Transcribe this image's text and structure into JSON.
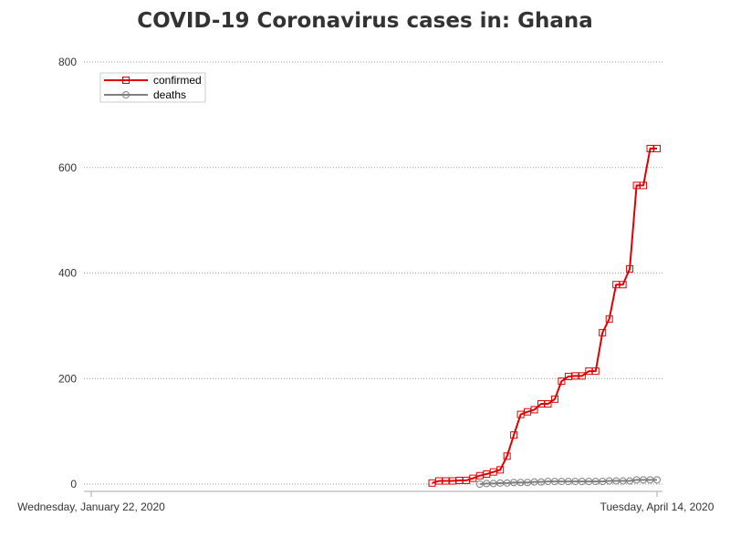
{
  "chart_data": {
    "type": "line",
    "title": "COVID-19 Coronavirus cases in: Ghana",
    "xlabel": "",
    "ylabel": "",
    "x_start_label": "Wednesday, January 22, 2020",
    "x_end_label": "Tuesday, April 14, 2020",
    "ylim": [
      0,
      800
    ],
    "yticks": [
      0,
      200,
      400,
      600,
      800
    ],
    "grid": true,
    "legend": "top-left",
    "series": [
      {
        "name": "confirmed",
        "color": "#e00000",
        "marker": "square",
        "x": [
          "2020-03-12",
          "2020-03-13",
          "2020-03-14",
          "2020-03-15",
          "2020-03-16",
          "2020-03-17",
          "2020-03-18",
          "2020-03-19",
          "2020-03-20",
          "2020-03-21",
          "2020-03-22",
          "2020-03-23",
          "2020-03-24",
          "2020-03-25",
          "2020-03-26",
          "2020-03-27",
          "2020-03-28",
          "2020-03-29",
          "2020-03-30",
          "2020-03-31",
          "2020-04-01",
          "2020-04-02",
          "2020-04-03",
          "2020-04-04",
          "2020-04-05",
          "2020-04-06",
          "2020-04-07",
          "2020-04-08",
          "2020-04-09",
          "2020-04-10",
          "2020-04-11",
          "2020-04-12",
          "2020-04-13",
          "2020-04-14"
        ],
        "y": [
          2,
          6,
          6,
          6,
          7,
          7,
          11,
          16,
          19,
          23,
          27,
          53,
          93,
          132,
          137,
          141,
          152,
          152,
          161,
          195,
          204,
          205,
          205,
          214,
          214,
          287,
          313,
          378,
          378,
          408,
          566,
          566,
          636,
          636
        ]
      },
      {
        "name": "deaths",
        "color": "#7f7f7f",
        "marker": "circle",
        "x": [
          "2020-03-19",
          "2020-03-20",
          "2020-03-21",
          "2020-03-22",
          "2020-03-23",
          "2020-03-24",
          "2020-03-25",
          "2020-03-26",
          "2020-03-27",
          "2020-03-28",
          "2020-03-29",
          "2020-03-30",
          "2020-03-31",
          "2020-04-01",
          "2020-04-02",
          "2020-04-03",
          "2020-04-04",
          "2020-04-05",
          "2020-04-06",
          "2020-04-07",
          "2020-04-08",
          "2020-04-09",
          "2020-04-10",
          "2020-04-11",
          "2020-04-12",
          "2020-04-13",
          "2020-04-14"
        ],
        "y": [
          0,
          1,
          1,
          2,
          2,
          3,
          3,
          3,
          4,
          4,
          5,
          5,
          5,
          5,
          5,
          5,
          5,
          5,
          5,
          6,
          6,
          6,
          6,
          8,
          8,
          8,
          8
        ]
      }
    ]
  }
}
